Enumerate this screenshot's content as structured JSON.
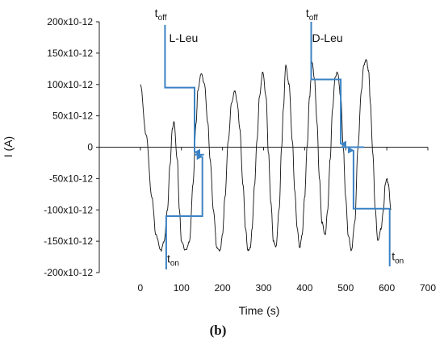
{
  "chart_data": {
    "type": "line",
    "title": "",
    "xlabel": "Time (s)",
    "ylabel": "I (A)",
    "panel_label": "(b)",
    "xlim": [
      -100,
      700
    ],
    "ylim": [
      -2e-10,
      2e-10
    ],
    "x_ticks": [
      {
        "value": 0,
        "label": "0"
      },
      {
        "value": 100,
        "label": "100"
      },
      {
        "value": 200,
        "label": "200"
      },
      {
        "value": 300,
        "label": "300"
      },
      {
        "value": 400,
        "label": "400"
      },
      {
        "value": 500,
        "label": "500"
      },
      {
        "value": 600,
        "label": "600"
      },
      {
        "value": 700,
        "label": "700"
      }
    ],
    "y_ticks": [
      {
        "value": 2e-10,
        "label": "200x10-12"
      },
      {
        "value": 1.5e-10,
        "label": "150x10-12"
      },
      {
        "value": 1e-10,
        "label": "100x10-12"
      },
      {
        "value": 5e-11,
        "label": "50x10-12"
      },
      {
        "value": 0,
        "label": "0"
      },
      {
        "value": -5e-11,
        "label": "-50x10-12"
      },
      {
        "value": -1e-10,
        "label": "-100x10-12"
      },
      {
        "value": -1.5e-10,
        "label": "-150x10-12"
      },
      {
        "value": -2e-10,
        "label": "-200x10-12"
      }
    ],
    "grid": false,
    "legend": "none",
    "colors": {
      "signal": "#111111",
      "annotation": "#3b82c4"
    },
    "series": [
      {
        "x": [
          0,
          14,
          28,
          38,
          50,
          58,
          66,
          72,
          78,
          82,
          90,
          95,
          100,
          110,
          120,
          128,
          136,
          140,
          148,
          156,
          164,
          170,
          178,
          186,
          194,
          200,
          206,
          214,
          222,
          230,
          236,
          242,
          250,
          256,
          262,
          268,
          272,
          278,
          284,
          290,
          298,
          306,
          312,
          318,
          324,
          330,
          338,
          344,
          348,
          354,
          362,
          370,
          376,
          382,
          388,
          394,
          400,
          406,
          412,
          418,
          424,
          430,
          436,
          442,
          450,
          456,
          462,
          468,
          474,
          480,
          488,
          494,
          500,
          506,
          514,
          522,
          530,
          538,
          544,
          550,
          556,
          560,
          566,
          572,
          578,
          586,
          592,
          596,
          600,
          604,
          610
        ],
        "y": [
          1e-10,
          2e-11,
          -8e-11,
          -1.4e-10,
          -1.65e-10,
          -1.5e-10,
          -1e-10,
          -3e-11,
          3e-11,
          4e-11,
          -2e-11,
          -1e-10,
          -1.5e-10,
          -1.65e-10,
          -1.5e-10,
          -6e-11,
          4e-11,
          9e-11,
          1.18e-10,
          1e-10,
          4e-11,
          -2e-11,
          -1e-10,
          -1.6e-10,
          -1.65e-10,
          -1.4e-10,
          -8e-11,
          1e-11,
          7e-11,
          9e-11,
          7e-11,
          3e-11,
          -6e-11,
          -1.3e-10,
          -1.65e-10,
          -1.6e-10,
          -1.3e-10,
          -6e-11,
          1e-11,
          8e-11,
          1.2e-10,
          8e-11,
          -1e-11,
          -9e-11,
          -1.5e-10,
          -1.6e-10,
          -1e-10,
          0,
          6e-11,
          1.3e-10,
          1e-10,
          1e-11,
          -7e-11,
          -1.3e-10,
          -1.6e-10,
          -1.4e-10,
          -8e-11,
          0,
          8e-11,
          1.35e-10,
          1.1e-10,
          4e-11,
          -5e-11,
          -1.2e-10,
          -1.4e-10,
          -1e-10,
          -2e-11,
          6e-11,
          1.1e-10,
          1.2e-10,
          8e-11,
          0,
          -8e-11,
          -1.4e-10,
          -1.65e-10,
          -1.2e-10,
          0,
          9e-11,
          1.3e-10,
          1.4e-10,
          1.2e-10,
          7e-11,
          -1e-11,
          -1e-10,
          -1.5e-10,
          -1.3e-10,
          -1e-10,
          -6e-11,
          -5e-11,
          -6e-11,
          -1e-10
        ]
      }
    ],
    "annotations": [
      {
        "label": "L-Leu",
        "x": 70,
        "y": 1.68e-10
      },
      {
        "label": "D-Leu",
        "x": 418,
        "y": 1.68e-10
      }
    ],
    "t_labels": [
      {
        "base": "t",
        "sub": "off",
        "x": 35,
        "y": 2.08e-10
      },
      {
        "base": "t",
        "sub": "on",
        "x": 65,
        "y": -1.84e-10
      },
      {
        "base": "t",
        "sub": "off",
        "x": 403,
        "y": 2.08e-10
      },
      {
        "base": "t",
        "sub": "on",
        "x": 612,
        "y": -1.8e-10
      }
    ],
    "steps": [
      {
        "points": [
          [
            60,
            1.95e-10
          ],
          [
            60,
            9.5e-11
          ],
          [
            132,
            9.5e-11
          ],
          [
            132,
            -8e-12
          ]
        ],
        "arrow_end": true
      },
      {
        "points": [
          [
            63,
            -1.95e-10
          ],
          [
            63,
            -1.1e-10
          ],
          [
            151,
            -1.1e-10
          ],
          [
            151,
            -1.5e-11
          ]
        ],
        "arrow_end": true
      },
      {
        "points": [
          [
            416,
            2e-10
          ],
          [
            416,
            1.08e-10
          ],
          [
            488,
            1.08e-10
          ],
          [
            488,
            5e-12
          ]
        ],
        "arrow_end": true
      },
      {
        "points": [
          [
            607,
            -1.9e-10
          ],
          [
            607,
            -9.8e-11
          ],
          [
            519,
            -9.8e-11
          ],
          [
            519,
            -5e-12
          ]
        ],
        "arrow_end": true
      },
      {
        "points": [
          [
            488,
            0
          ],
          [
            545,
            0
          ]
        ],
        "arrow_end": false
      },
      {
        "points": [
          [
            132,
            -1.2e-11
          ],
          [
            155,
            -1.2e-11
          ]
        ],
        "arrow_end": false
      }
    ]
  }
}
